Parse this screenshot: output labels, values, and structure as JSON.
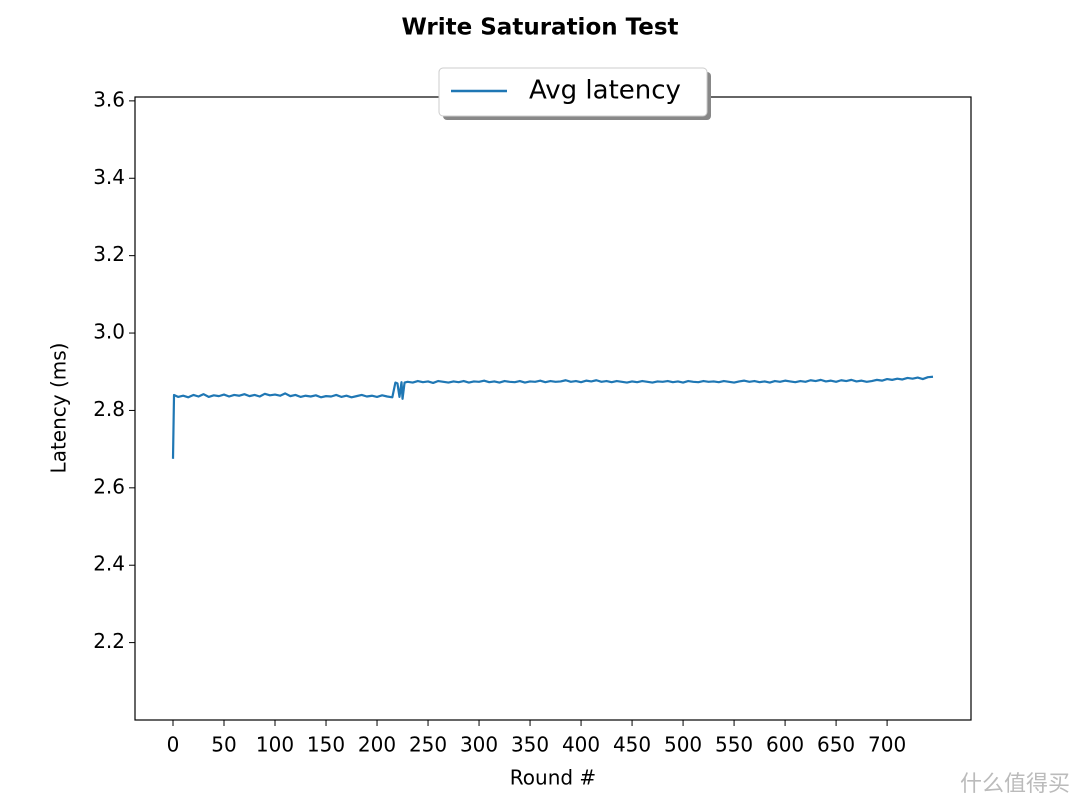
{
  "chart_data": {
    "type": "line",
    "title": "Write Saturation Test",
    "x_label": "Round #",
    "y_label": "Latency (ms)",
    "watermark": "什么值得买",
    "xlim": [
      -37.25,
      782.25
    ],
    "ylim": [
      2.0,
      3.61
    ],
    "xticks": [
      0,
      50,
      100,
      150,
      200,
      250,
      300,
      350,
      400,
      450,
      500,
      550,
      600,
      650,
      700
    ],
    "yticks": [
      2.2,
      2.4,
      2.6,
      2.8,
      {
        "value": 3,
        "label": "3.0"
      },
      3.2,
      3.4,
      3.6
    ],
    "legend": "upper center",
    "grid": false,
    "x": [
      0,
      1,
      5,
      10,
      15,
      20,
      25,
      30,
      35,
      40,
      45,
      50,
      55,
      60,
      65,
      70,
      75,
      80,
      85,
      90,
      95,
      100,
      105,
      110,
      115,
      120,
      125,
      130,
      135,
      140,
      145,
      150,
      155,
      160,
      165,
      170,
      175,
      180,
      185,
      190,
      195,
      200,
      205,
      210,
      215,
      218,
      220,
      222,
      224,
      225,
      227,
      230,
      235,
      240,
      245,
      250,
      255,
      260,
      265,
      270,
      275,
      280,
      285,
      290,
      295,
      300,
      305,
      310,
      315,
      320,
      325,
      330,
      335,
      340,
      345,
      350,
      355,
      360,
      365,
      370,
      375,
      380,
      385,
      390,
      395,
      400,
      405,
      410,
      415,
      420,
      425,
      430,
      435,
      440,
      445,
      450,
      455,
      460,
      465,
      470,
      475,
      480,
      485,
      490,
      495,
      500,
      505,
      510,
      515,
      520,
      525,
      530,
      535,
      540,
      545,
      550,
      555,
      560,
      565,
      570,
      575,
      580,
      585,
      590,
      595,
      600,
      605,
      610,
      615,
      620,
      625,
      630,
      635,
      640,
      645,
      650,
      655,
      660,
      665,
      670,
      675,
      680,
      685,
      690,
      695,
      700,
      705,
      710,
      715,
      720,
      725,
      730,
      735,
      740,
      745
    ],
    "series": [
      {
        "name": "Avg latency",
        "color": "#1f77b4",
        "values": [
          2.675,
          2.84,
          2.835,
          2.838,
          2.834,
          2.84,
          2.836,
          2.842,
          2.835,
          2.839,
          2.837,
          2.841,
          2.836,
          2.84,
          2.838,
          2.842,
          2.837,
          2.84,
          2.836,
          2.843,
          2.839,
          2.841,
          2.838,
          2.844,
          2.837,
          2.84,
          2.835,
          2.838,
          2.836,
          2.839,
          2.834,
          2.837,
          2.836,
          2.84,
          2.835,
          2.838,
          2.834,
          2.837,
          2.84,
          2.836,
          2.838,
          2.835,
          2.839,
          2.836,
          2.834,
          2.872,
          2.87,
          2.835,
          2.873,
          2.83,
          2.872,
          2.874,
          2.872,
          2.876,
          2.873,
          2.875,
          2.871,
          2.876,
          2.874,
          2.872,
          2.875,
          2.873,
          2.876,
          2.872,
          2.875,
          2.874,
          2.877,
          2.873,
          2.875,
          2.872,
          2.876,
          2.874,
          2.873,
          2.876,
          2.872,
          2.875,
          2.874,
          2.877,
          2.873,
          2.876,
          2.874,
          2.875,
          2.878,
          2.874,
          2.876,
          2.873,
          2.877,
          2.875,
          2.878,
          2.874,
          2.876,
          2.873,
          2.876,
          2.874,
          2.872,
          2.875,
          2.873,
          2.876,
          2.874,
          2.872,
          2.875,
          2.874,
          2.876,
          2.873,
          2.875,
          2.872,
          2.876,
          2.874,
          2.873,
          2.876,
          2.874,
          2.875,
          2.873,
          2.876,
          2.874,
          2.872,
          2.875,
          2.877,
          2.874,
          2.876,
          2.873,
          2.875,
          2.872,
          2.876,
          2.874,
          2.877,
          2.875,
          2.873,
          2.876,
          2.874,
          2.878,
          2.876,
          2.879,
          2.875,
          2.877,
          2.874,
          2.878,
          2.876,
          2.879,
          2.875,
          2.877,
          2.874,
          2.876,
          2.879,
          2.877,
          2.881,
          2.879,
          2.882,
          2.88,
          2.884,
          2.882,
          2.885,
          2.881,
          2.886,
          2.887
        ]
      }
    ]
  }
}
